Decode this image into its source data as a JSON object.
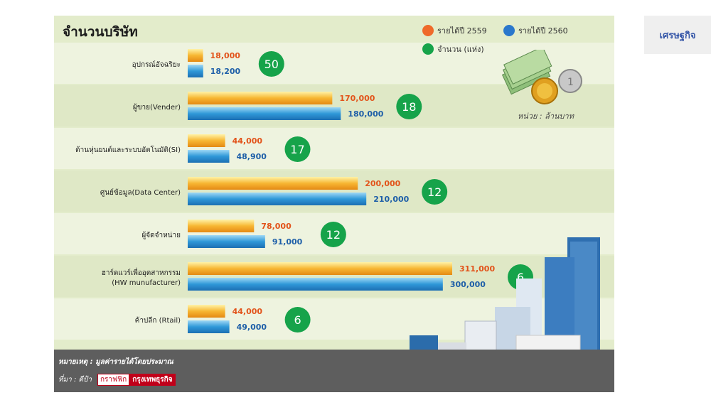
{
  "title": "จำนวนบริษัท",
  "legend": [
    {
      "label": "รายได้ปี 2559",
      "color": "#ef6a2a"
    },
    {
      "label": "รายได้ปี 2560",
      "color": "#2a78cc"
    },
    {
      "label": "จำนวน (แห่ง)",
      "color": "#16a34a"
    }
  ],
  "unit_text": "หน่วย : ล้านบาท",
  "note": "หมายเหตุ : มูลค่ารายได้โดยประมาณ",
  "source_label": "ที่มา : ดีป้า",
  "source_box1": "กราฟฟิก",
  "source_box2": "กรุงเทพธุรกิจ",
  "side_button": "เศรษฐกิจ",
  "chart_data": {
    "type": "bar",
    "orientation": "horizontal",
    "categories": [
      "อุปกรณ์อัจฉริยะ",
      "ผู้ขาย(Vender)",
      "ด้านหุ่นยนต์และระบบอัตโนมัติ(SI)",
      "ศูนย์ข้อมูล(Data Center)",
      "ผู้จัดจำหน่าย",
      "ฮาร์ดแวร์เพื่ออุตสาหกรรม (HW munufacturer)",
      "ค้าปลีก (Rtail)"
    ],
    "series": [
      {
        "name": "รายได้ปี 2559",
        "values": [
          18000,
          170000,
          44000,
          200000,
          78000,
          311000,
          44000
        ]
      },
      {
        "name": "รายได้ปี 2560",
        "values": [
          18200,
          180000,
          48900,
          210000,
          91000,
          300000,
          49000
        ]
      }
    ],
    "value_labels_2559": [
      "18,000",
      "170,000",
      "44,000",
      "200,000",
      "78,000",
      "311,000",
      "44,000"
    ],
    "value_labels_2560": [
      "18,200",
      "180,000",
      "48,900",
      "210,000",
      "91,000",
      "300,000",
      "49,000"
    ],
    "counts": [
      "50",
      "18",
      "17",
      "12",
      "12",
      "6",
      "6"
    ],
    "xlim": [
      0,
      311000
    ]
  }
}
